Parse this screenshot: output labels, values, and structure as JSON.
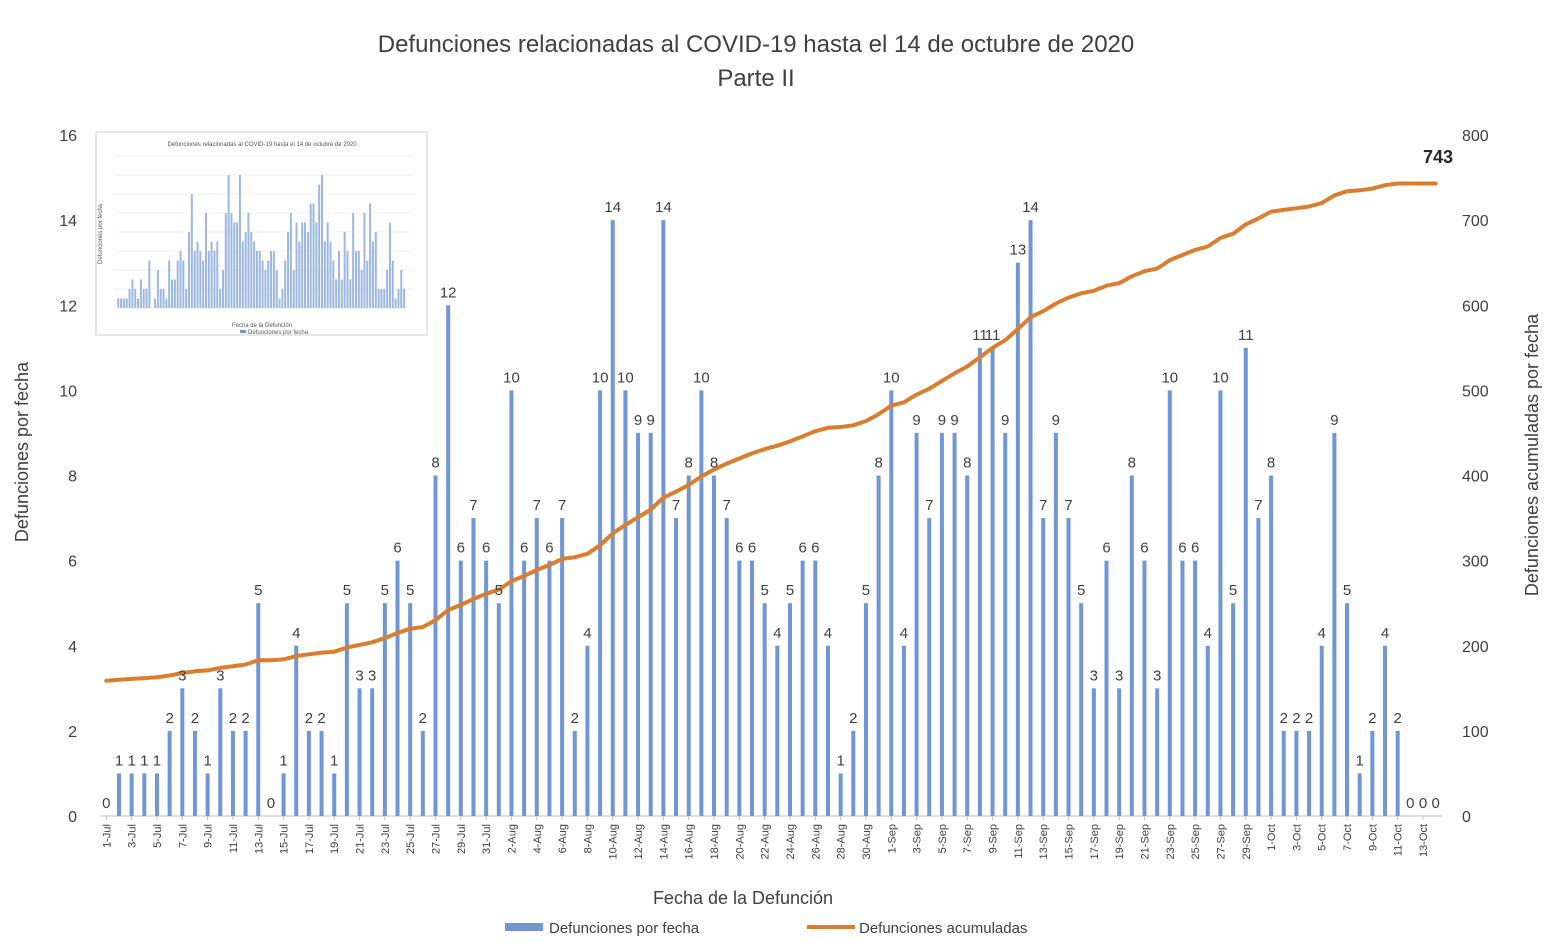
{
  "chart_data": {
    "type": "bar",
    "title": "Defunciones relacionadas al COVID-19 hasta el 14 de octubre de 2020",
    "subtitle": "Parte II",
    "xlabel": "Fecha de la Defunción",
    "ylabel": "Defunciones por fecha",
    "y2label": "Defunciones acumuladas por fecha",
    "ylim": [
      0,
      16
    ],
    "y2lim": [
      0,
      800
    ],
    "yticks": [
      "0",
      "2",
      "4",
      "6",
      "8",
      "10",
      "12",
      "14",
      "16"
    ],
    "y2ticks": [
      "0",
      "100",
      "200",
      "300",
      "400",
      "500",
      "600",
      "700",
      "800"
    ],
    "grid": false,
    "legend_position": "bottom",
    "categories": [
      "1-Jul",
      "2-Jul",
      "3-Jul",
      "4-Jul",
      "5-Jul",
      "6-Jul",
      "7-Jul",
      "8-Jul",
      "9-Jul",
      "10-Jul",
      "11-Jul",
      "12-Jul",
      "13-Jul",
      "14-Jul",
      "15-Jul",
      "16-Jul",
      "17-Jul",
      "18-Jul",
      "19-Jul",
      "20-Jul",
      "21-Jul",
      "22-Jul",
      "23-Jul",
      "24-Jul",
      "25-Jul",
      "26-Jul",
      "27-Jul",
      "28-Jul",
      "29-Jul",
      "30-Jul",
      "31-Jul",
      "1-Aug",
      "2-Aug",
      "3-Aug",
      "4-Aug",
      "5-Aug",
      "6-Aug",
      "7-Aug",
      "8-Aug",
      "9-Aug",
      "10-Aug",
      "11-Aug",
      "12-Aug",
      "13-Aug",
      "14-Aug",
      "15-Aug",
      "16-Aug",
      "17-Aug",
      "18-Aug",
      "19-Aug",
      "20-Aug",
      "21-Aug",
      "22-Aug",
      "23-Aug",
      "24-Aug",
      "25-Aug",
      "26-Aug",
      "27-Aug",
      "28-Aug",
      "29-Aug",
      "30-Aug",
      "31-Aug",
      "1-Sep",
      "2-Sep",
      "3-Sep",
      "4-Sep",
      "5-Sep",
      "6-Sep",
      "7-Sep",
      "8-Sep",
      "9-Sep",
      "10-Sep",
      "11-Sep",
      "12-Sep",
      "13-Sep",
      "14-Sep",
      "15-Sep",
      "16-Sep",
      "17-Sep",
      "18-Sep",
      "19-Sep",
      "20-Sep",
      "21-Sep",
      "22-Sep",
      "23-Sep",
      "24-Sep",
      "25-Sep",
      "26-Sep",
      "27-Sep",
      "28-Sep",
      "29-Sep",
      "30-Sep",
      "1-Oct",
      "2-Oct",
      "3-Oct",
      "4-Oct",
      "5-Oct",
      "6-Oct",
      "7-Oct",
      "8-Oct",
      "9-Oct",
      "10-Oct",
      "11-Oct",
      "12-Oct",
      "13-Oct",
      "14-Oct"
    ],
    "tick_labels": [
      "1-Jul",
      "3-Jul",
      "5-Jul",
      "7-Jul",
      "9-Jul",
      "11-Jul",
      "13-Jul",
      "15-Jul",
      "17-Jul",
      "19-Jul",
      "21-Jul",
      "23-Jul",
      "25-Jul",
      "27-Jul",
      "29-Jul",
      "31-Jul",
      "2-Aug",
      "4-Aug",
      "6-Aug",
      "8-Aug",
      "10-Aug",
      "12-Aug",
      "14-Aug",
      "16-Aug",
      "18-Aug",
      "20-Aug",
      "22-Aug",
      "24-Aug",
      "26-Aug",
      "28-Aug",
      "30-Aug",
      "1-Sep",
      "3-Sep",
      "5-Sep",
      "7-Sep",
      "9-Sep",
      "11-Sep",
      "13-Sep",
      "15-Sep",
      "17-Sep",
      "19-Sep",
      "21-Sep",
      "23-Sep",
      "25-Sep",
      "27-Sep",
      "29-Sep",
      "1-Oct",
      "3-Oct",
      "5-Oct",
      "7-Oct",
      "9-Oct",
      "11-Oct",
      "13-Oct"
    ],
    "series": [
      {
        "name": "Defunciones por fecha",
        "type": "bar",
        "axis": "left",
        "color": "#7096D3",
        "values": [
          0,
          1,
          1,
          1,
          1,
          2,
          3,
          2,
          1,
          3,
          2,
          2,
          5,
          0,
          1,
          4,
          2,
          2,
          1,
          5,
          3,
          3,
          5,
          6,
          5,
          2,
          8,
          12,
          6,
          7,
          6,
          5,
          10,
          6,
          7,
          6,
          7,
          2,
          4,
          10,
          14,
          10,
          9,
          9,
          14,
          7,
          8,
          10,
          8,
          7,
          6,
          6,
          5,
          4,
          5,
          6,
          6,
          4,
          1,
          2,
          5,
          8,
          10,
          4,
          9,
          7,
          9,
          9,
          8,
          11,
          11,
          9,
          13,
          14,
          7,
          9,
          7,
          5,
          3,
          6,
          3,
          8,
          6,
          3,
          10,
          6,
          6,
          4,
          10,
          5,
          11,
          7,
          8,
          2,
          2,
          2,
          4,
          9,
          5,
          1,
          2,
          4,
          2,
          0,
          0,
          0
        ]
      },
      {
        "name": "Defunciones acumuladas",
        "type": "line",
        "axis": "right",
        "color": "#DA7D2F",
        "values": [
          159,
          160,
          161,
          162,
          163,
          165,
          168,
          170,
          171,
          174,
          176,
          178,
          183,
          183,
          184,
          188,
          190,
          192,
          193,
          198,
          201,
          204,
          209,
          215,
          220,
          222,
          230,
          242,
          248,
          255,
          261,
          266,
          276,
          282,
          289,
          295,
          302,
          304,
          308,
          318,
          332,
          342,
          351,
          360,
          374,
          381,
          389,
          399,
          407,
          414,
          420,
          426,
          431,
          435,
          440,
          446,
          452,
          456,
          457,
          459,
          464,
          472,
          482,
          486,
          495,
          502,
          511,
          520,
          528,
          539,
          550,
          559,
          572,
          586,
          593,
          602,
          609,
          614,
          617,
          623,
          626,
          634,
          640,
          643,
          653,
          659,
          665,
          669,
          679,
          684,
          695,
          702,
          710,
          712,
          714,
          716,
          720,
          729,
          734,
          735,
          737,
          741,
          743,
          743,
          743,
          743
        ]
      }
    ],
    "annotations": {
      "end_value": "743"
    },
    "inset_image": {
      "title": "Defunciones relacionadas al COVID-19 hasta el 14 de octubre de 2020",
      "xlabel": "Fecha de la Defunción",
      "ylabel": "Defunciones por fecha",
      "legend": "Defunciones por fecha"
    }
  }
}
